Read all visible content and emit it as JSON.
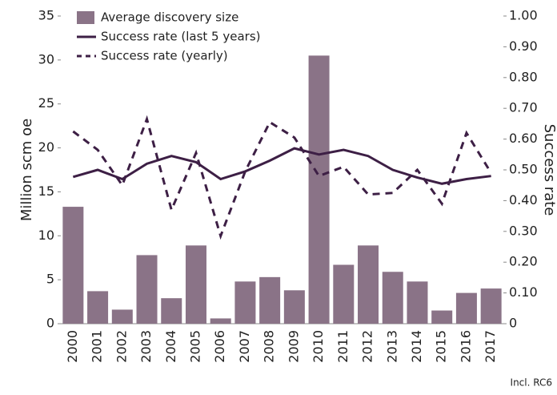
{
  "chart_data": {
    "type": "bar",
    "categories": [
      "2000",
      "2001",
      "2002",
      "2003",
      "2004",
      "2005",
      "2006",
      "2007",
      "2008",
      "2009",
      "2010",
      "2011",
      "2012",
      "2013",
      "2014",
      "2015",
      "2016",
      "2017"
    ],
    "series": [
      {
        "name": "Average discovery size",
        "type": "bar",
        "color": "#8a7387",
        "values": [
          13.3,
          3.7,
          1.6,
          7.8,
          2.9,
          8.9,
          0.6,
          4.8,
          5.3,
          3.8,
          30.5,
          6.7,
          8.9,
          5.9,
          4.8,
          1.5,
          3.5,
          4.0
        ]
      },
      {
        "name": "Success rate (last 5 years)",
        "type": "line",
        "axis": "y2",
        "color": "#3d1f45",
        "dash": false,
        "values": [
          0.477,
          0.5,
          0.47,
          0.52,
          0.545,
          0.525,
          0.47,
          0.495,
          0.53,
          0.57,
          0.55,
          0.565,
          0.545,
          0.5,
          0.475,
          0.455,
          0.47,
          0.48
        ]
      },
      {
        "name": "Success rate (yearly)",
        "type": "line",
        "axis": "y2",
        "color": "#3d1f45",
        "dash": true,
        "values": [
          0.625,
          0.565,
          0.45,
          0.665,
          0.37,
          0.555,
          0.285,
          0.495,
          0.655,
          0.605,
          0.48,
          0.51,
          0.42,
          0.425,
          0.5,
          0.39,
          0.62,
          0.49
        ]
      }
    ],
    "ylabel": "Million scm oe",
    "y2label": "Success rate",
    "ylim": [
      0,
      35
    ],
    "yticks": [
      0,
      5,
      10,
      15,
      20,
      25,
      30,
      35
    ],
    "y2lim": [
      0,
      1
    ],
    "y2ticks": [
      0,
      {
        "value": 0.1,
        "label": "0.10"
      },
      {
        "value": 0.2,
        "label": "0.20"
      },
      {
        "value": 0.3,
        "label": "0.30"
      },
      {
        "value": 0.4,
        "label": "0.40"
      },
      {
        "value": 0.5,
        "label": "0.50"
      },
      {
        "value": 0.6,
        "label": "0.60"
      },
      {
        "value": 0.7,
        "label": "0.70"
      },
      {
        "value": 0.8,
        "label": "0.80"
      },
      {
        "value": 0.9,
        "label": "0.90"
      },
      {
        "value": 1,
        "label": "1.00"
      }
    ],
    "note": "Incl. RC6"
  }
}
